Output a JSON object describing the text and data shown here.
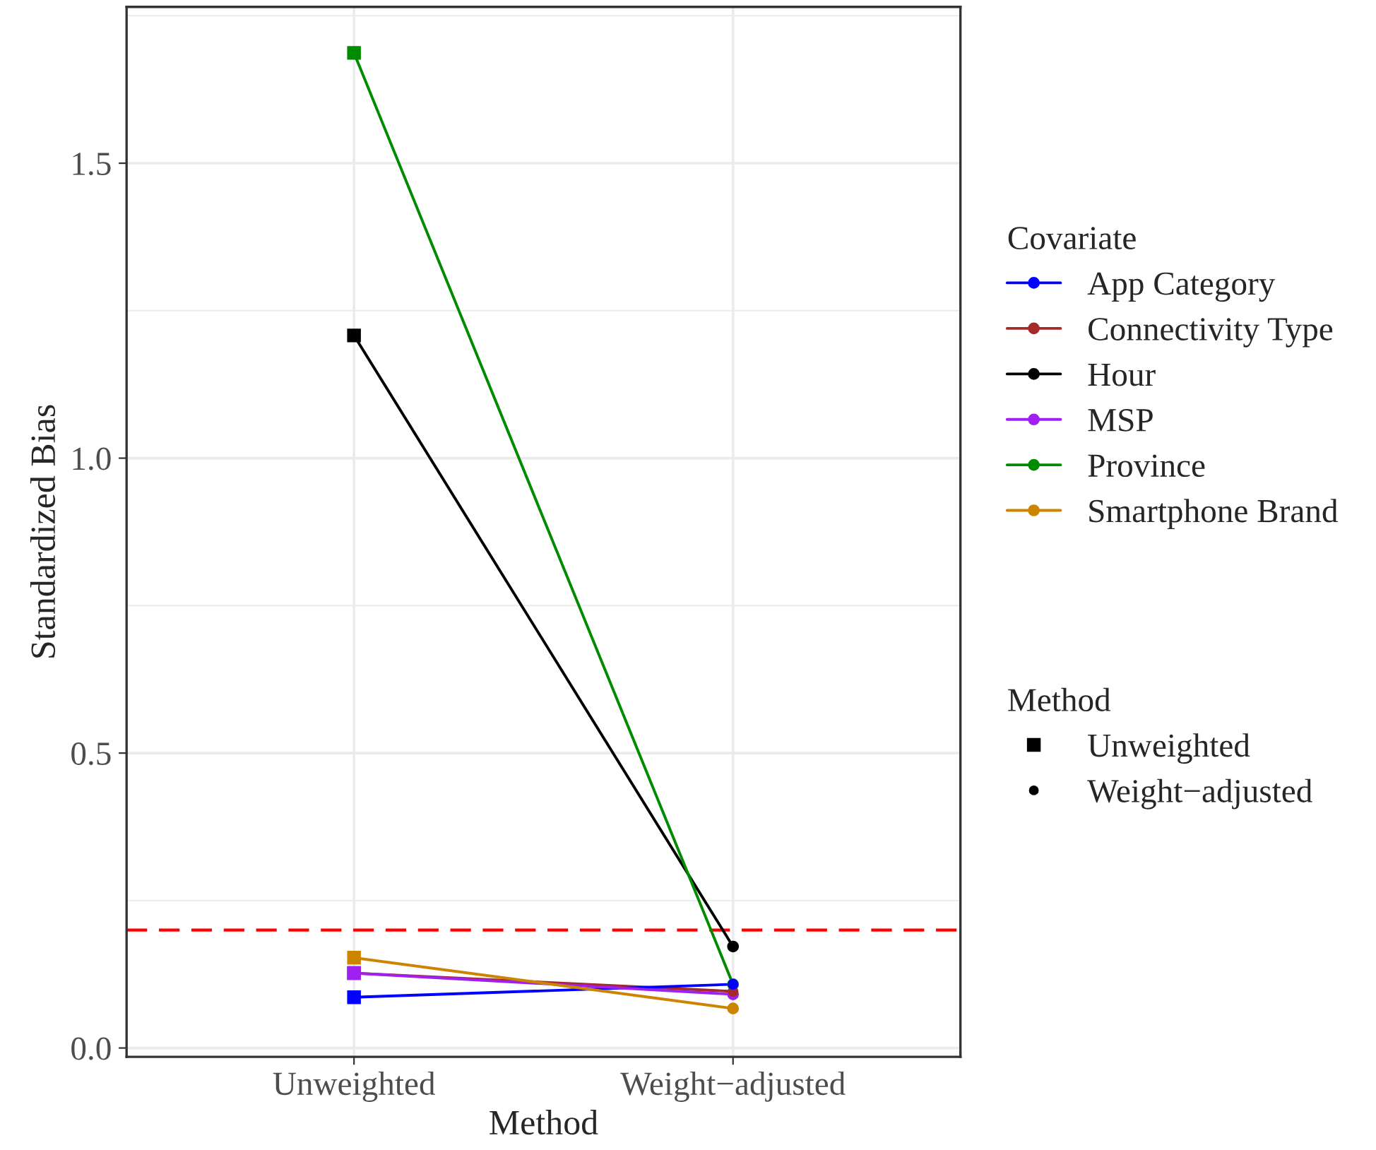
{
  "chart_data": {
    "type": "line",
    "xlabel": "Method",
    "ylabel": "Standardized Bias",
    "legend_title": "Covariate",
    "categories": [
      "Unweighted",
      "Weight−adjusted"
    ],
    "marker": [
      "square",
      "circle"
    ],
    "series": [
      {
        "name": "App Category",
        "color": "#0000ff",
        "values": [
          0.086,
          0.108
        ]
      },
      {
        "name": "Connectivity Type",
        "color": "#a52a2a",
        "values": [
          0.127,
          0.096
        ]
      },
      {
        "name": "Hour",
        "color": "#000000",
        "values": [
          1.208,
          0.172
        ]
      },
      {
        "name": "MSP",
        "color": "#a020f0",
        "values": [
          0.127,
          0.091
        ]
      },
      {
        "name": "Province",
        "color": "#008b00",
        "values": [
          1.687,
          0.108
        ]
      },
      {
        "name": "Smartphone Brand",
        "color": "#cd8500",
        "values": [
          0.153,
          0.067
        ]
      }
    ],
    "ylim": [
      -0.015,
      1.765
    ],
    "yticks": [
      {
        "value": 0,
        "label": "0.0"
      },
      0.5,
      {
        "value": 1,
        "label": "1.0"
      },
      1.5
    ],
    "ref_lines": [
      {
        "axis": "y",
        "value": 0.2,
        "color": "#ff0000",
        "line_style": "dashed"
      }
    ],
    "grid": true,
    "legend": "right"
  }
}
